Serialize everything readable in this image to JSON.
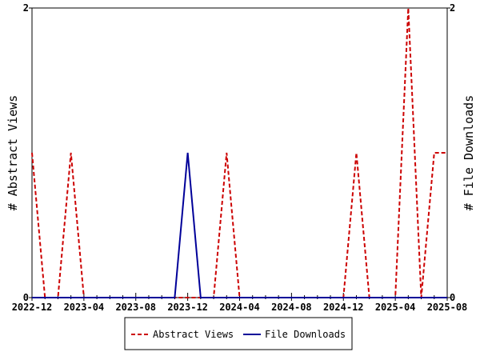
{
  "chart_data": {
    "type": "line",
    "x_months": [
      "2022-12",
      "2023-01",
      "2023-02",
      "2023-03",
      "2023-04",
      "2023-05",
      "2023-06",
      "2023-07",
      "2023-08",
      "2023-09",
      "2023-10",
      "2023-11",
      "2023-12",
      "2024-01",
      "2024-02",
      "2024-03",
      "2024-04",
      "2024-05",
      "2024-06",
      "2024-07",
      "2024-08",
      "2024-09",
      "2024-10",
      "2024-11",
      "2024-12",
      "2025-01",
      "2025-02",
      "2025-03",
      "2025-04",
      "2025-05",
      "2025-06",
      "2025-07",
      "2025-08"
    ],
    "x_tick_labels": [
      "2022-12",
      "2023-04",
      "2023-08",
      "2023-12",
      "2024-04",
      "2024-08",
      "2024-12",
      "2025-04",
      "2025-08"
    ],
    "series": [
      {
        "name": "Abstract Views",
        "axis": "left",
        "color": "#cc0000",
        "style": "dashed",
        "values": [
          1,
          0,
          0,
          1,
          0,
          0,
          0,
          0,
          0,
          0,
          0,
          0,
          0,
          0,
          0,
          1,
          0,
          0,
          0,
          0,
          0,
          0,
          0,
          0,
          0,
          1,
          0,
          0,
          0,
          2,
          0,
          1,
          1
        ]
      },
      {
        "name": "File Downloads",
        "axis": "right",
        "color": "#000099",
        "style": "solid",
        "values": [
          0,
          0,
          0,
          0,
          0,
          0,
          0,
          0,
          0,
          0,
          0,
          0,
          1,
          0,
          0,
          0,
          0,
          0,
          0,
          0,
          0,
          0,
          0,
          0,
          0,
          0,
          0,
          0,
          0,
          0,
          0,
          0,
          0
        ]
      }
    ],
    "ylabel_left": "# Abstract Views",
    "ylabel_right": "# File Downloads",
    "ylim_left": [
      0,
      2
    ],
    "ylim_right": [
      0,
      2
    ],
    "y_ticks_left": [
      "0",
      "2"
    ],
    "y_ticks_right": [
      "0",
      "2"
    ],
    "grid": false,
    "legend_placement": "bottom"
  }
}
